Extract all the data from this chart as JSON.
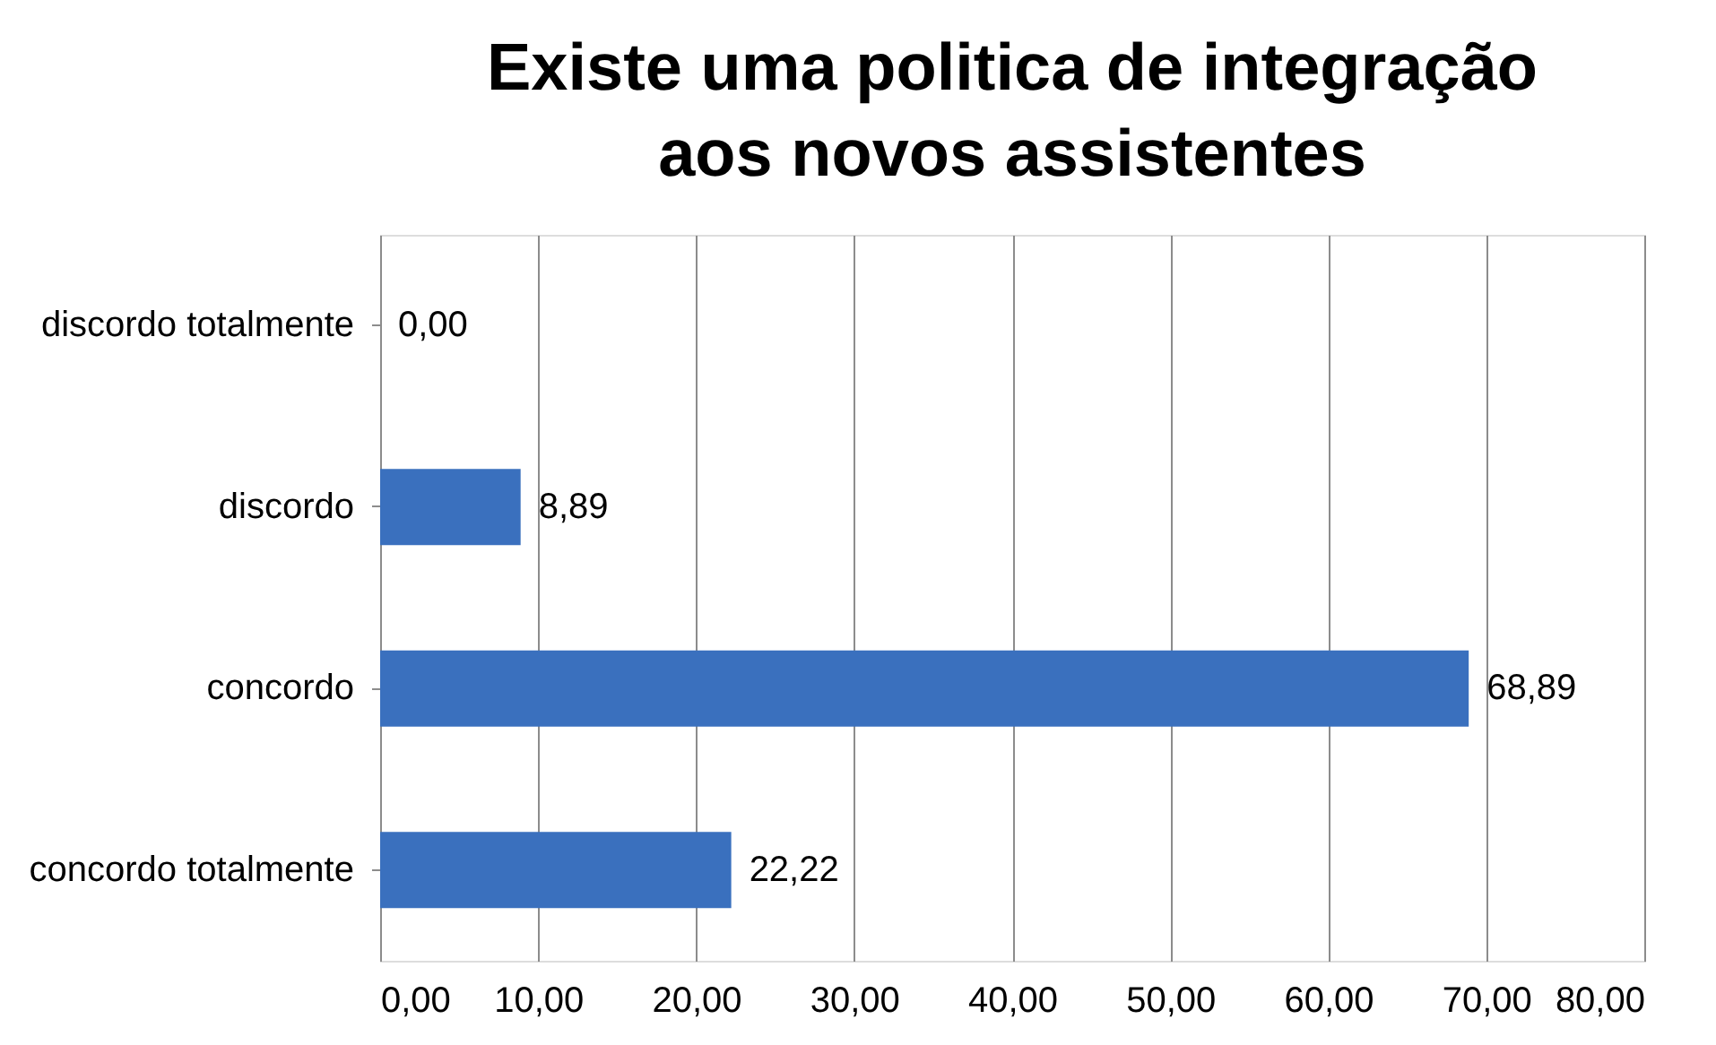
{
  "chart_data": {
    "type": "bar",
    "orientation": "horizontal",
    "title": "Existe uma politica de integração aos novos assistentes",
    "categories": [
      "discordo totalmente",
      "discordo",
      "concordo",
      "concordo totalmente"
    ],
    "values": [
      0.0,
      8.89,
      68.89,
      22.22
    ],
    "value_labels": [
      "0,00",
      "8,89",
      "68,89",
      "22,22"
    ],
    "color": "#3a70be",
    "xlim": [
      0,
      80
    ],
    "xticks": [
      {
        "value": 0,
        "label": "0,00"
      },
      {
        "value": 10,
        "label": "10,00"
      },
      {
        "value": 20,
        "label": "20,00"
      },
      {
        "value": 30,
        "label": "30,00"
      },
      {
        "value": 40,
        "label": "40,00"
      },
      {
        "value": 50,
        "label": "50,00"
      },
      {
        "value": 60,
        "label": "60,00"
      },
      {
        "value": 70,
        "label": "70,00"
      },
      {
        "value": 80,
        "label": "80,00"
      }
    ],
    "grid": "x"
  }
}
